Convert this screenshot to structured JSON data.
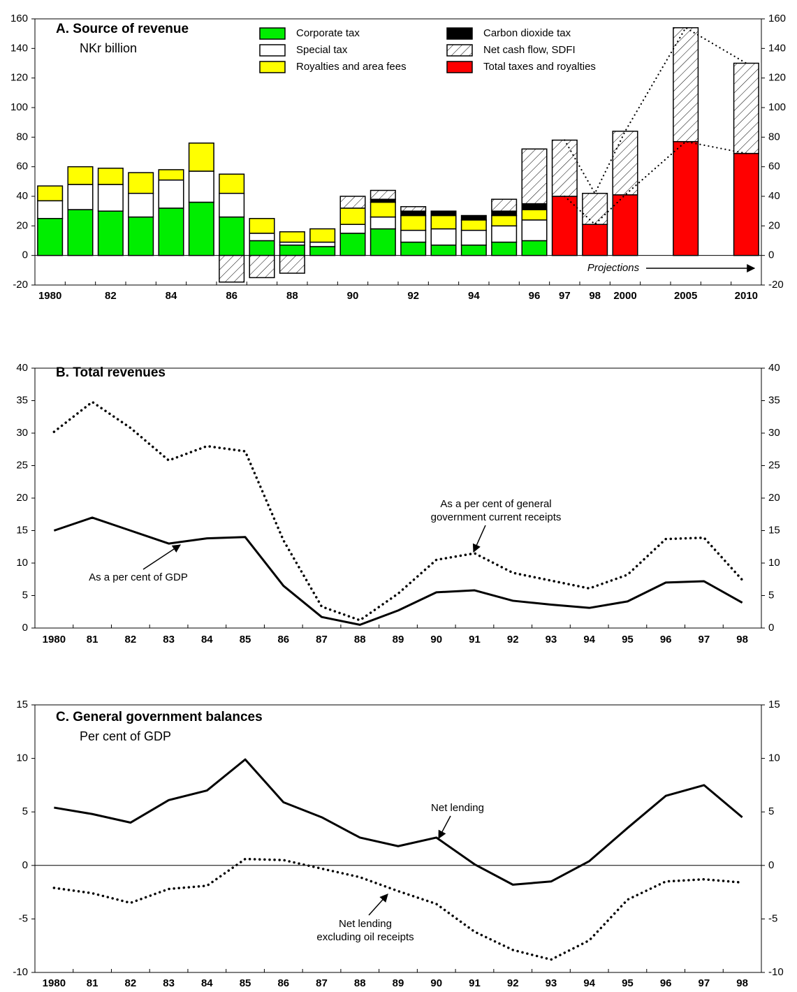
{
  "chart_data": [
    {
      "type": "bar",
      "stacked": true,
      "title": "A.  Source of revenue",
      "subtitle": "NKr billion",
      "categories": [
        "1980",
        null,
        "82",
        null,
        "84",
        null,
        "86",
        null,
        "88",
        null,
        "90",
        null,
        "92",
        null,
        "94",
        null,
        "96",
        "97",
        "98",
        "2000",
        null,
        "2005",
        null,
        "2010"
      ],
      "series": [
        {
          "name": "Corporate tax",
          "color": "#00ee00",
          "values": [
            25,
            31,
            30,
            26,
            32,
            36,
            26,
            10,
            7,
            6,
            15,
            18,
            9,
            7,
            7,
            9,
            10,
            null,
            null,
            null,
            null,
            null,
            null,
            null
          ]
        },
        {
          "name": "Special tax",
          "color": "#ffffff",
          "values": [
            12,
            17,
            18,
            16,
            19,
            21,
            16,
            5,
            2,
            3,
            6,
            8,
            8,
            11,
            10,
            11,
            14,
            null,
            null,
            null,
            null,
            null,
            null,
            null
          ]
        },
        {
          "name": "Royalties and area fees",
          "color": "#ffff00",
          "values": [
            10,
            12,
            11,
            14,
            7,
            19,
            13,
            10,
            7,
            9,
            11,
            10,
            10,
            9,
            7,
            7,
            7,
            null,
            null,
            null,
            null,
            null,
            null,
            null
          ]
        },
        {
          "name": "Carbon dioxide tax",
          "color": "#000000",
          "values": [
            null,
            null,
            null,
            null,
            null,
            null,
            null,
            null,
            null,
            null,
            null,
            2,
            3,
            3,
            3,
            3,
            4,
            null,
            null,
            null,
            null,
            null,
            null,
            null
          ]
        },
        {
          "name": "Total taxes and royalties",
          "color": "#ff0000",
          "values": [
            null,
            null,
            null,
            null,
            null,
            null,
            null,
            null,
            null,
            null,
            null,
            null,
            null,
            null,
            null,
            null,
            null,
            40,
            21,
            41,
            null,
            77,
            null,
            69
          ]
        },
        {
          "name": "Net cash flow, SDFI",
          "color": "#ffffff",
          "pattern": "hatch",
          "values": [
            null,
            null,
            null,
            null,
            null,
            null,
            -18,
            -15,
            -12,
            null,
            8,
            6,
            3,
            null,
            null,
            8,
            37,
            38,
            21,
            43,
            null,
            77,
            null,
            61
          ]
        }
      ],
      "annotations": [
        {
          "text": "Projections"
        }
      ],
      "ylim": [
        -20,
        160
      ],
      "yticks": [
        -20,
        0,
        20,
        40,
        60,
        80,
        100,
        120,
        140,
        160
      ]
    },
    {
      "type": "line",
      "title": "B.  Total revenues",
      "categories": [
        "1980",
        "81",
        "82",
        "83",
        "84",
        "85",
        "86",
        "87",
        "88",
        "89",
        "90",
        "91",
        "92",
        "93",
        "94",
        "95",
        "96",
        "97",
        "98"
      ],
      "series": [
        {
          "label": [
            "As a per cent of general",
            "government current receipts"
          ],
          "color": "#000000",
          "style": "dotted",
          "values": [
            30.2,
            34.8,
            30.8,
            25.8,
            28,
            27.2,
            13.5,
            3.3,
            1.2,
            5.3,
            10.5,
            11.5,
            8.5,
            7.3,
            6.1,
            8.2,
            13.7,
            13.9,
            7.4
          ]
        },
        {
          "label": [
            "As a per cent of GDP"
          ],
          "color": "#000000",
          "style": "solid",
          "values": [
            15,
            17,
            15,
            13,
            13.8,
            14,
            6.5,
            1.7,
            0.5,
            2.7,
            5.5,
            5.8,
            4.2,
            3.6,
            3.1,
            4.1,
            7,
            7.2,
            3.9
          ]
        }
      ],
      "ylim": [
        0,
        40
      ],
      "yticks": [
        0,
        5,
        10,
        15,
        20,
        25,
        30,
        35,
        40
      ]
    },
    {
      "type": "line",
      "title": "C.  General government balances",
      "subtitle": "Per cent of GDP",
      "categories": [
        "1980",
        "81",
        "82",
        "83",
        "84",
        "85",
        "86",
        "87",
        "88",
        "89",
        "90",
        "91",
        "92",
        "93",
        "94",
        "95",
        "96",
        "97",
        "98"
      ],
      "series": [
        {
          "label": [
            "Net lending"
          ],
          "color": "#000000",
          "style": "solid",
          "values": [
            5.4,
            4.8,
            4.0,
            6.1,
            7.0,
            9.9,
            5.9,
            4.5,
            2.6,
            1.8,
            2.6,
            0.1,
            -1.8,
            -1.5,
            0.4,
            3.5,
            6.5,
            7.5,
            4.5
          ]
        },
        {
          "label": [
            "Net lending",
            "excluding oil receipts"
          ],
          "color": "#000000",
          "style": "dotted",
          "values": [
            -2.1,
            -2.6,
            -3.5,
            -2.2,
            -1.9,
            0.6,
            0.5,
            -0.3,
            -1.1,
            -2.4,
            -3.6,
            -6.2,
            -7.9,
            -8.8,
            -7.0,
            -3.2,
            -1.5,
            -1.3,
            -1.6
          ]
        }
      ],
      "ylim": [
        -10,
        15
      ],
      "yticks": [
        -10,
        -5,
        0,
        5,
        10,
        15
      ]
    }
  ]
}
